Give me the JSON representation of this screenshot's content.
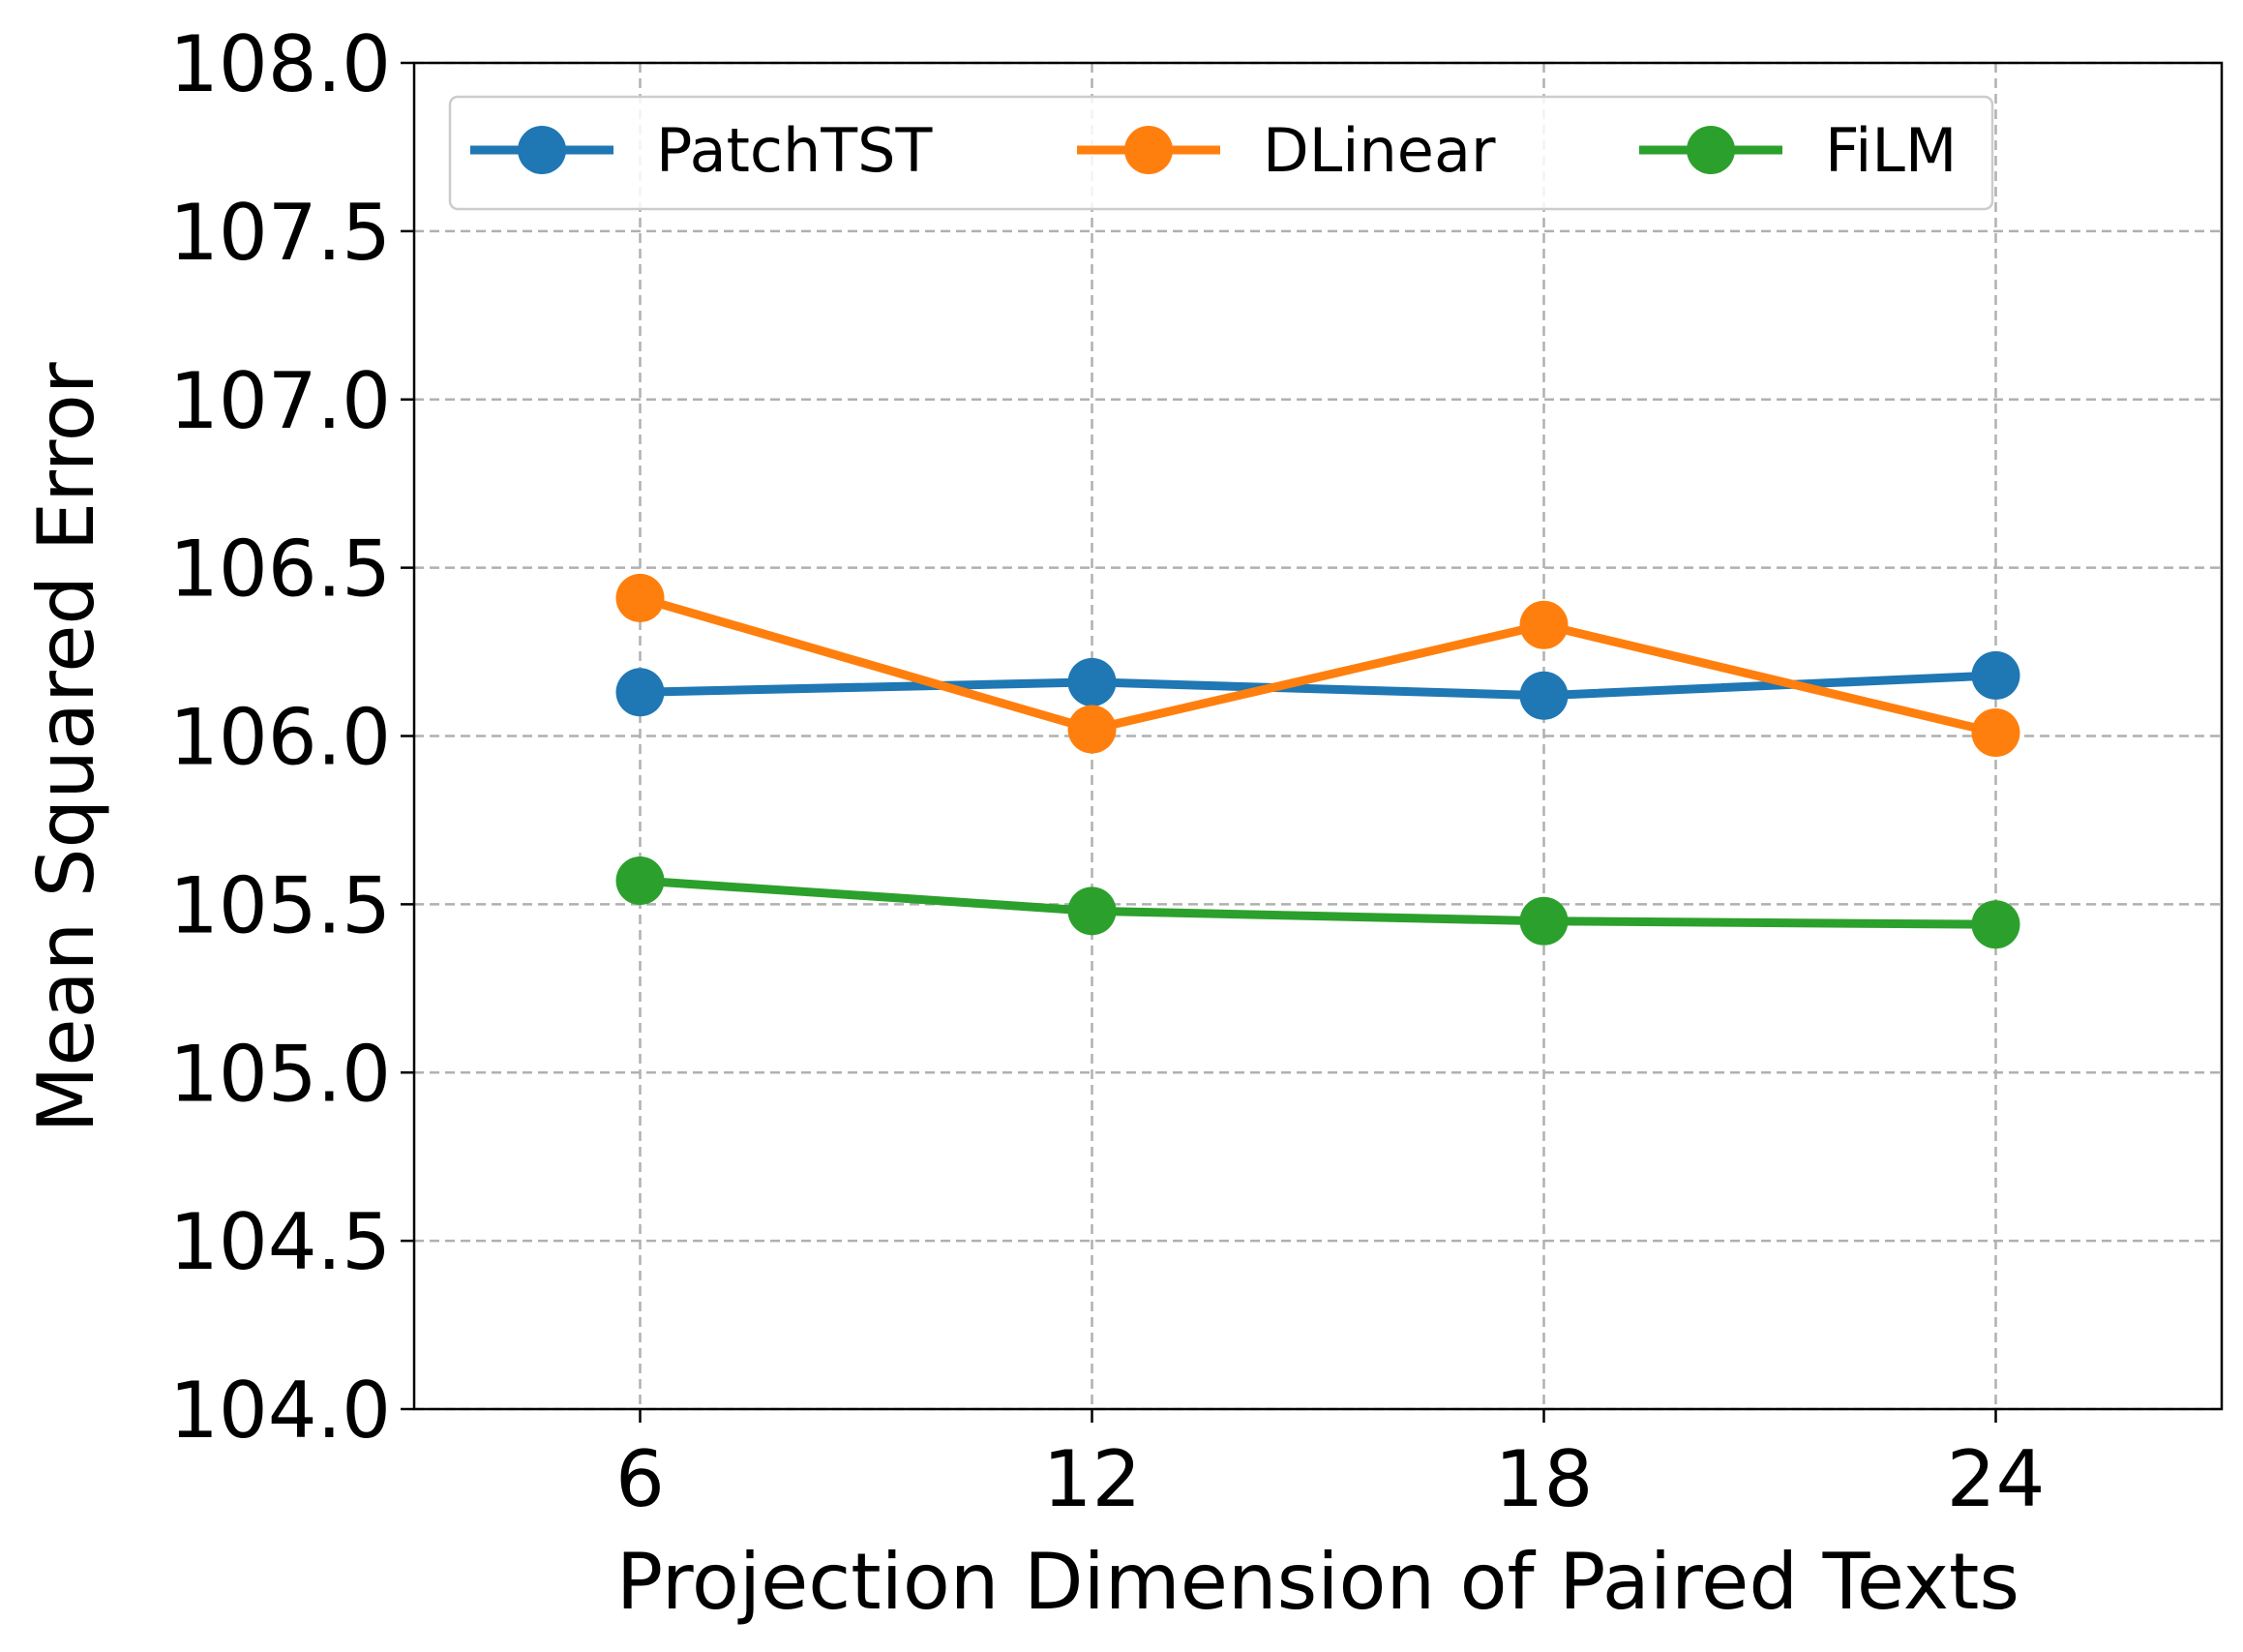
{
  "chart_data": {
    "type": "line",
    "title": "",
    "xlabel": "Projection Dimension of Paired Texts",
    "ylabel": "Mean Squared Error",
    "x": [
      6,
      12,
      18,
      24
    ],
    "x_tick_labels": [
      "6",
      "12",
      "18",
      "24"
    ],
    "xlim": [
      3,
      27
    ],
    "ylim": [
      104.0,
      108.0
    ],
    "y_ticks": [
      104.0,
      104.5,
      105.0,
      105.5,
      106.0,
      106.5,
      107.0,
      107.5,
      108.0
    ],
    "y_tick_labels": [
      "104.0",
      "104.5",
      "105.0",
      "105.5",
      "106.0",
      "106.5",
      "107.0",
      "107.5",
      "108.0"
    ],
    "grid": true,
    "legend_position": "top",
    "series": [
      {
        "name": "PatchTST",
        "color": "#1f77b4",
        "values": [
          106.13,
          106.16,
          106.12,
          106.18
        ]
      },
      {
        "name": "DLinear",
        "color": "#ff7f0e",
        "values": [
          106.41,
          106.02,
          106.33,
          106.01
        ]
      },
      {
        "name": "FiLM",
        "color": "#2ca02c",
        "values": [
          105.57,
          105.48,
          105.45,
          105.44
        ]
      }
    ]
  }
}
